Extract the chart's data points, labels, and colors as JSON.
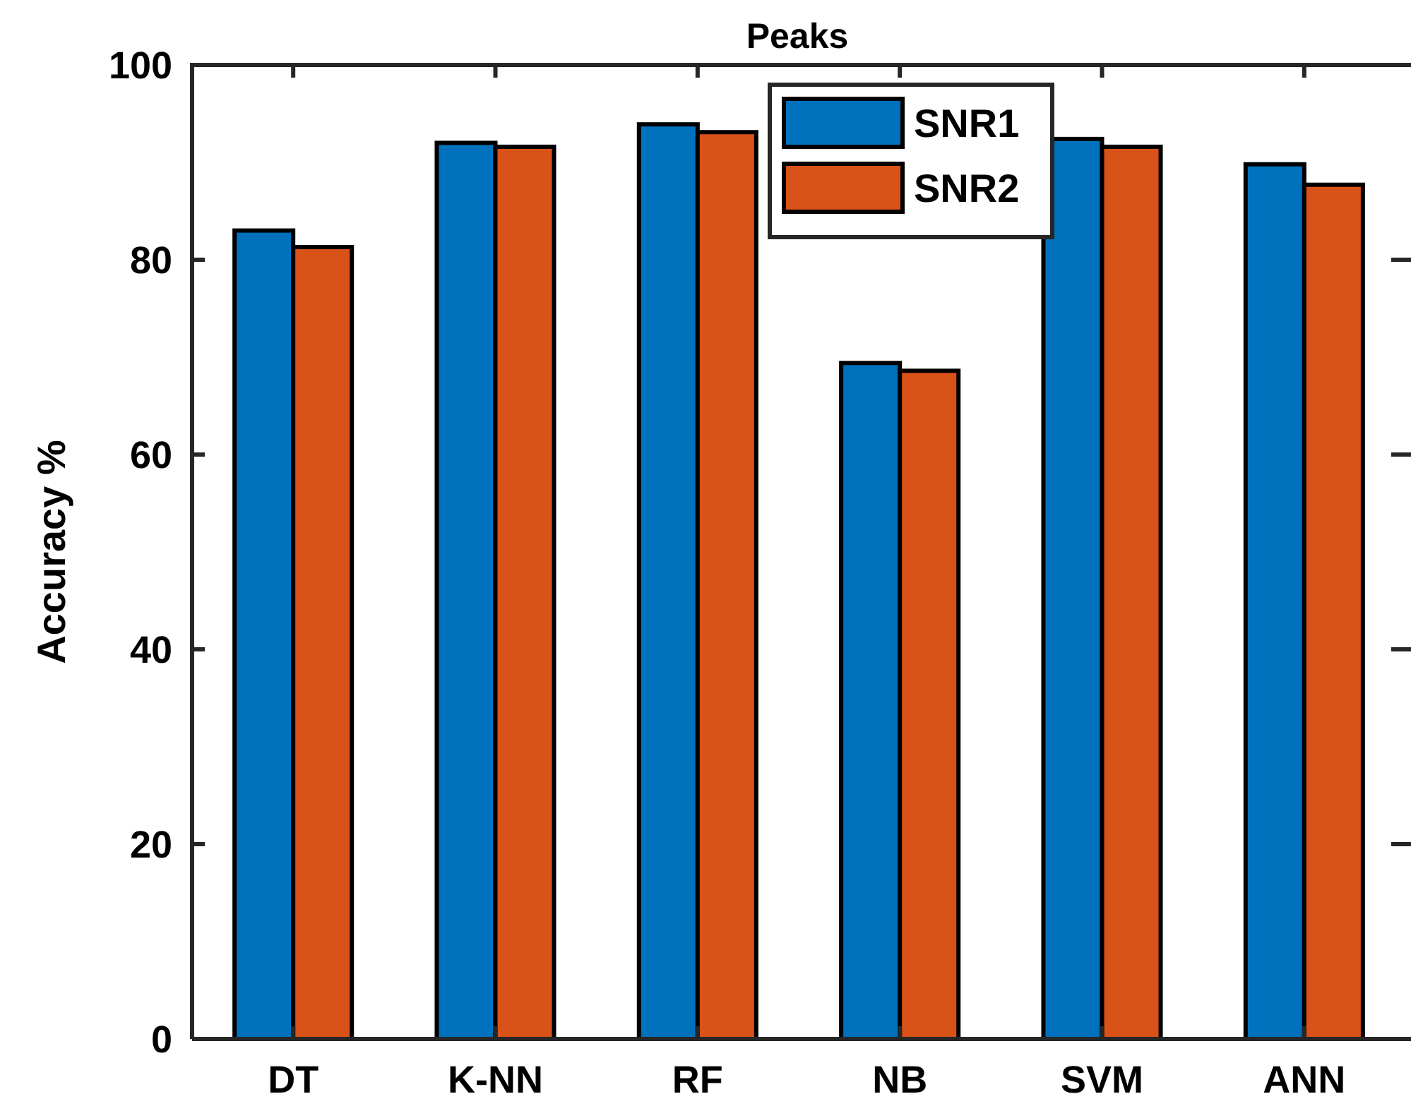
{
  "chart_data": {
    "type": "bar",
    "title": "Peaks",
    "ylabel": "Accuracy %",
    "categories": [
      "DT",
      "K-NN",
      "RF",
      "NB",
      "SVM",
      "ANN"
    ],
    "series": [
      {
        "name": "SNR1",
        "color": "#0072bd",
        "values": [
          83.0,
          92.0,
          93.9,
          69.4,
          92.4,
          89.8
        ]
      },
      {
        "name": "SNR2",
        "color": "#d95319",
        "values": [
          81.3,
          91.6,
          93.1,
          68.6,
          91.6,
          87.7
        ]
      }
    ],
    "ylim": [
      0,
      100
    ],
    "yticks": [
      0,
      20,
      40,
      60,
      80,
      100
    ],
    "grid": false,
    "legend": "top"
  }
}
